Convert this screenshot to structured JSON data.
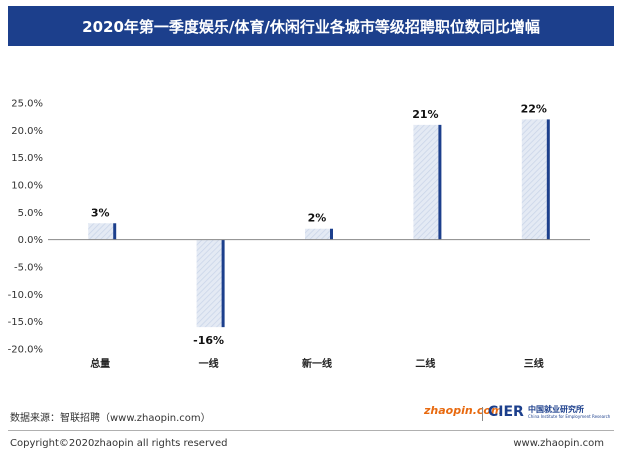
{
  "header": {
    "title": "2020年第一季度娱乐/体育/休闲行业各城市等级招聘职位数同比增幅"
  },
  "chart_data": {
    "type": "bar",
    "categories": [
      "总量",
      "一线",
      "新一线",
      "二线",
      "三线"
    ],
    "values": [
      3,
      -16,
      2,
      21,
      22
    ],
    "value_labels": [
      "3%",
      "-16%",
      "2%",
      "21%",
      "22%"
    ],
    "unit": "%",
    "ylim": [
      -20,
      25
    ],
    "yticks": [
      25,
      20,
      15,
      10,
      5,
      0,
      -5,
      -10,
      -15,
      -20
    ],
    "ytick_labels": [
      "25.0%",
      "20.0%",
      "15.0%",
      "10.0%",
      "5.0%",
      "0.0%",
      "-5.0%",
      "-10.0%",
      "-15.0%",
      "-20.0%"
    ],
    "grid": false,
    "title": "2020年第一季度娱乐/体育/休闲行业各城市等级招聘职位数同比增幅",
    "xlabel": "",
    "ylabel": ""
  },
  "colors": {
    "title_bg": "#1c3f8c",
    "bar_fill": "#dfe6f2",
    "bar_edge": "#1c3f8c",
    "axis": "#888888"
  },
  "footer": {
    "source": "数据来源：智联招聘（www.zhaopin.com）",
    "copyright": "Copyright©2020zhaopin all rights reserved",
    "url": "www.zhaopin.com"
  },
  "logos": {
    "zhaopin": "zhaopin.com",
    "cier": "CIER",
    "cier_cn": "中国就业研究所",
    "cier_en": "China Institute for Employment Research"
  }
}
